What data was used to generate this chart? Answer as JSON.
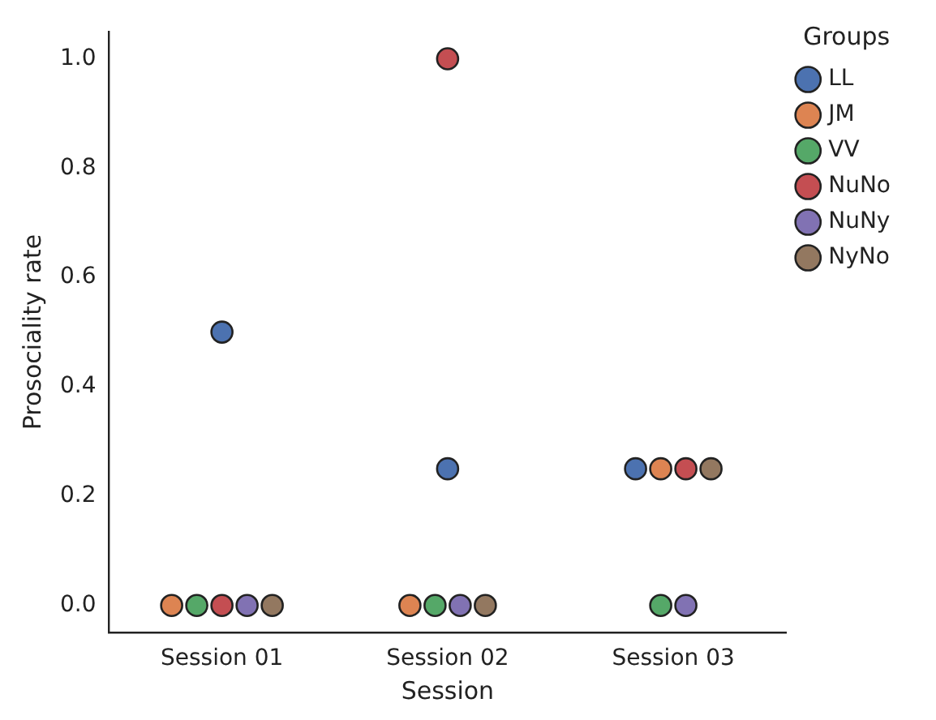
{
  "chart_data": {
    "type": "scatter",
    "xlabel": "Session",
    "ylabel": "Prosociality rate",
    "legend_title": "Groups",
    "categories": [
      "Session 01",
      "Session 02",
      "Session 03"
    ],
    "series": [
      {
        "name": "LL",
        "color": "#4c72b0",
        "values": [
          0.5,
          0.25,
          0.25
        ]
      },
      {
        "name": "JM",
        "color": "#dd8452",
        "values": [
          0,
          0,
          0.25
        ]
      },
      {
        "name": "VV",
        "color": "#55a868",
        "values": [
          0,
          0,
          0
        ]
      },
      {
        "name": "NuNo",
        "color": "#c44e52",
        "values": [
          0,
          1.0,
          0.25
        ]
      },
      {
        "name": "NuNy",
        "color": "#8172b3",
        "values": [
          0,
          0,
          0
        ]
      },
      {
        "name": "NyNo",
        "color": "#937860",
        "values": [
          0,
          0,
          0.25
        ]
      }
    ],
    "ylim": [
      -0.05,
      1.05
    ],
    "yticks": [
      {
        "value": 0,
        "label": "0.0"
      },
      {
        "value": 0.2,
        "label": "0.2"
      },
      {
        "value": 0.4,
        "label": "0.4"
      },
      {
        "value": 0.6,
        "label": "0.6"
      },
      {
        "value": 0.8,
        "label": "0.8"
      },
      {
        "value": 1.0,
        "label": "1.0"
      }
    ],
    "grid": false,
    "legend": "top right",
    "marker": "circle"
  }
}
